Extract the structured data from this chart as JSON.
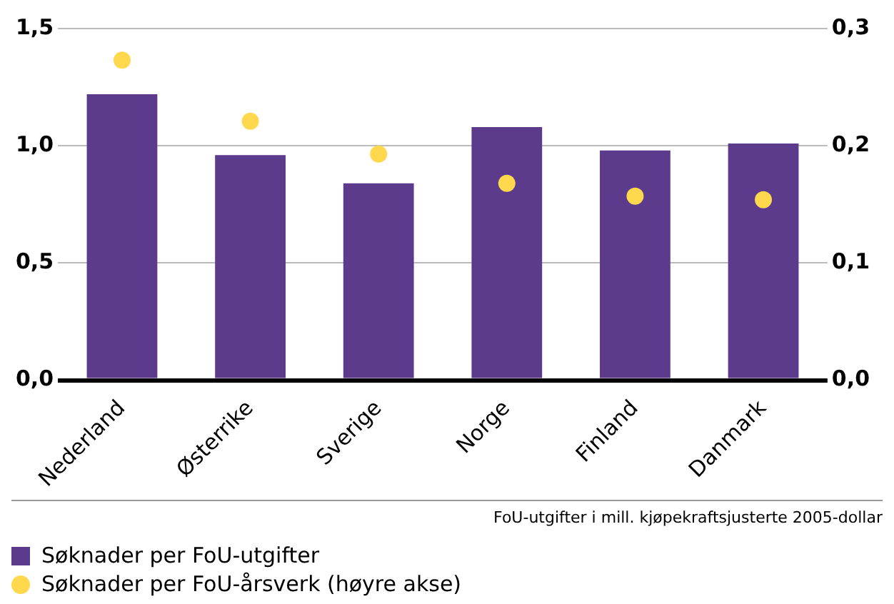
{
  "chart_data": {
    "type": "bar",
    "categories": [
      "Nederland",
      "Østerrike",
      "Sverige",
      "Norge",
      "Finland",
      "Danmark"
    ],
    "series": [
      {
        "name": "Søknader per FoU-utgifter",
        "color": "#5c3a8c",
        "values": [
          1.22,
          0.96,
          0.84,
          1.08,
          0.98,
          1.01
        ]
      },
      {
        "name": "Søknader per FoU-årsverk (høyre akse)",
        "type": "scatter",
        "axis": "y2",
        "color": "#ffd84d",
        "marker": "circle",
        "values": [
          0.273,
          0.221,
          0.193,
          0.168,
          0.157,
          0.154
        ]
      }
    ],
    "ylim": [
      0,
      1.5
    ],
    "yticks": [
      {
        "value": 0,
        "label": "0,0"
      },
      {
        "value": 0.5,
        "label": "0,5"
      },
      {
        "value": 1,
        "label": "1,0"
      },
      {
        "value": 1.5,
        "label": "1,5"
      }
    ],
    "y2lim": [
      0,
      0.3
    ],
    "y2ticks": [
      {
        "value": 0,
        "label": "0,0"
      },
      {
        "value": 0.1,
        "label": "0,1"
      },
      {
        "value": 0.2,
        "label": "0,2"
      },
      {
        "value": 0.3,
        "label": "0,3"
      }
    ],
    "grid": "y",
    "legend": "bottom",
    "annotations": [
      "FoU-utgifter i mill. kjøpekraftsjusterte 2005-dollar"
    ]
  }
}
